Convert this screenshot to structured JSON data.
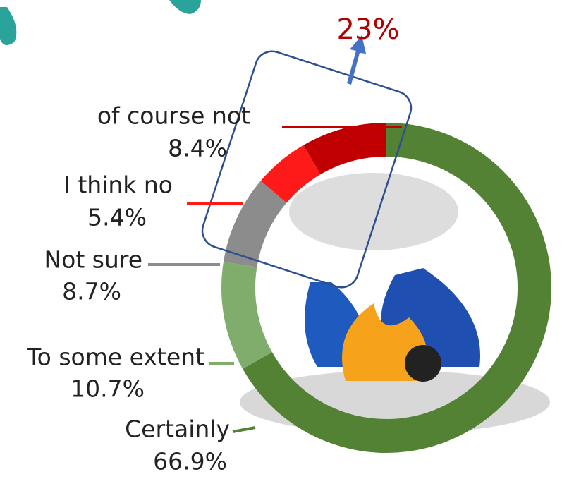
{
  "chart_data": {
    "type": "donut",
    "categories": [
      "of course not",
      "I think no",
      "Not sure",
      "To some extent",
      "Certainly"
    ],
    "values": [
      8.4,
      5.4,
      8.7,
      10.7,
      66.9
    ],
    "value_labels": [
      "8.4%",
      "5.4%",
      "8.7%",
      "10.7%",
      "66.9%"
    ],
    "colors": [
      "#c00000",
      "#ff1a1a",
      "#8c8c8c",
      "#80ad6c",
      "#548235"
    ],
    "annotation": "23%"
  }
}
